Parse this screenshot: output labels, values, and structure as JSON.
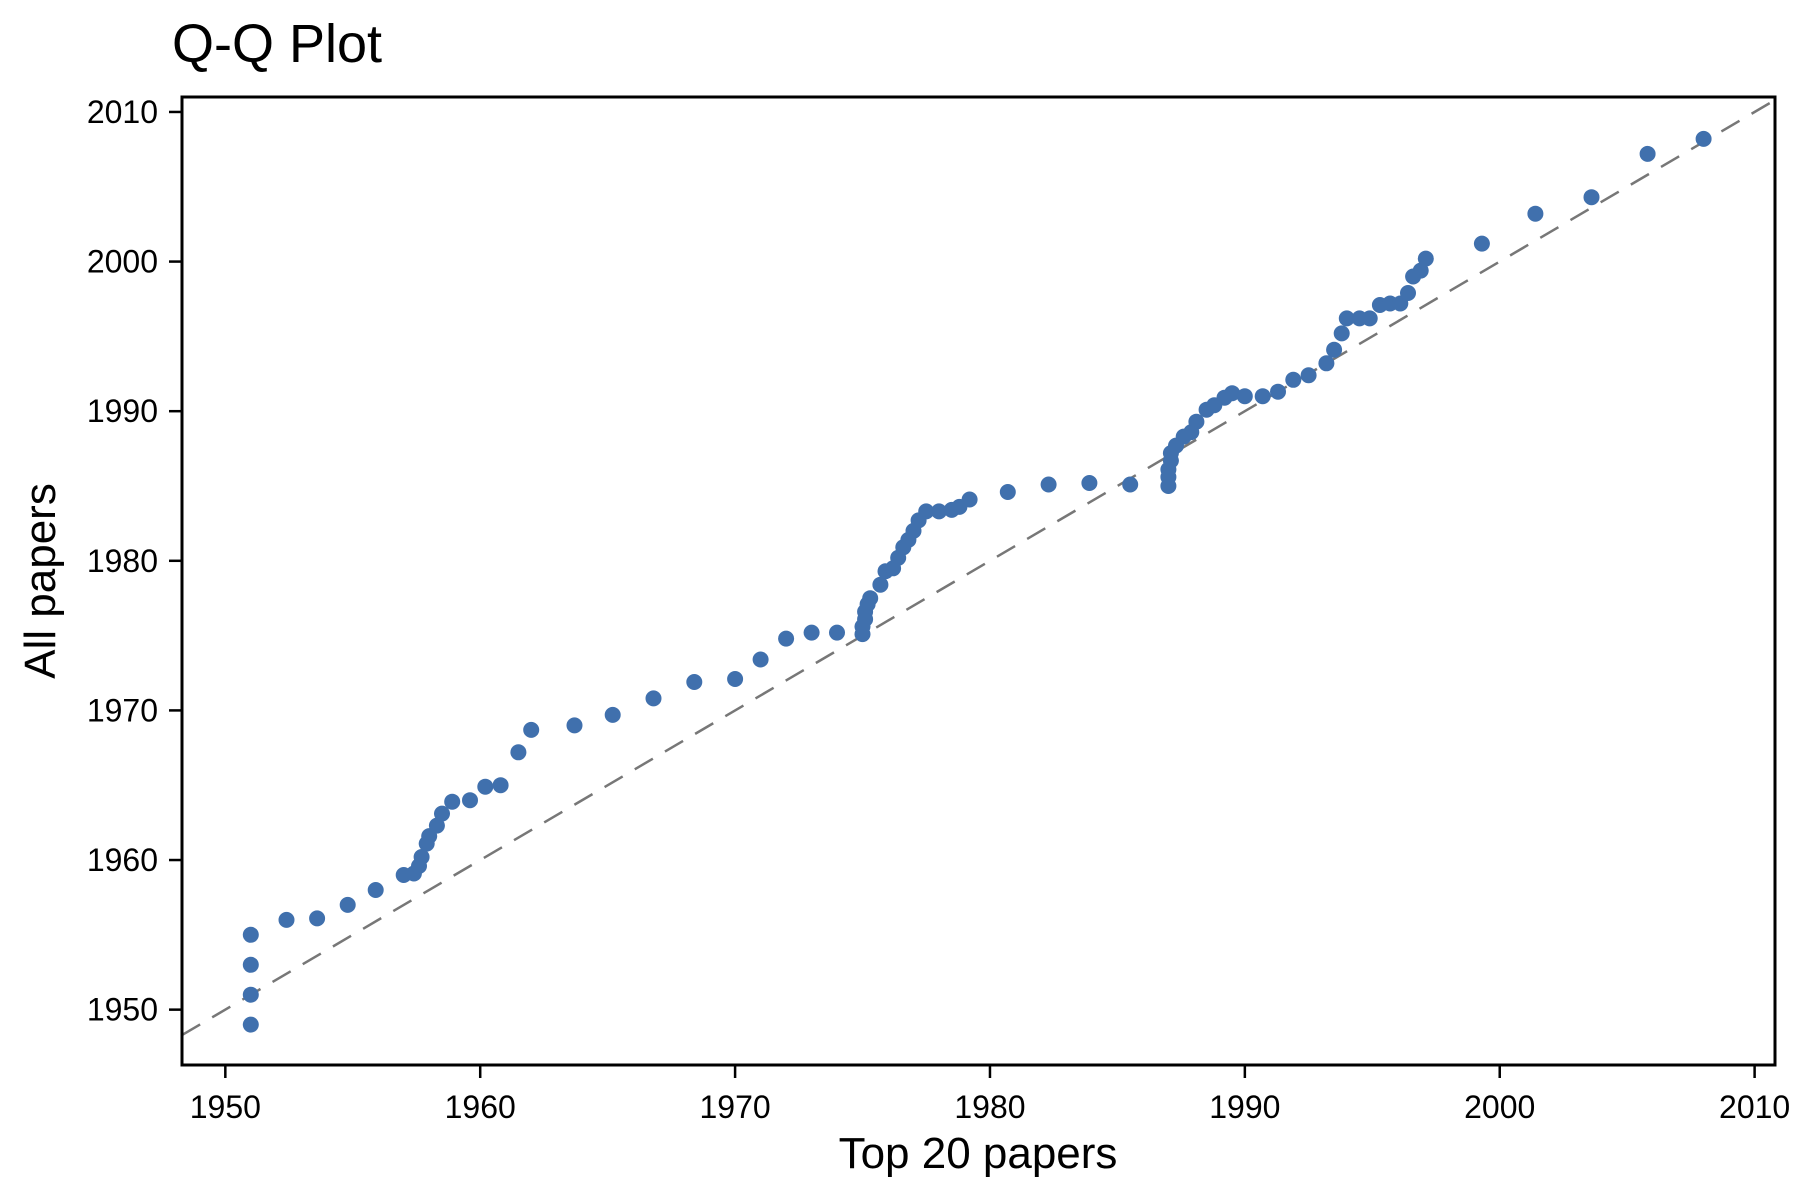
{
  "figure": {
    "title": "Q-Q Plot",
    "xlabel": "Top 20 papers",
    "ylabel": "All papers"
  },
  "chart_data": {
    "type": "scatter",
    "title": "Q-Q Plot",
    "xlabel": "Top 20 papers",
    "ylabel": "All papers",
    "xlim": [
      1948.3,
      2010.8
    ],
    "ylim": [
      1946.3,
      2011.0
    ],
    "xticks": [
      1950,
      1960,
      1970,
      1980,
      1990,
      2000,
      2010
    ],
    "yticks": [
      1950,
      1960,
      1970,
      1980,
      1990,
      2000,
      2010
    ],
    "grid": false,
    "legend": "none",
    "marker_color": "#4070ad",
    "axis_color": "#000000",
    "reference_line": {
      "style": "dashed",
      "color": "#777777",
      "from": [
        1948.3,
        1948.3
      ],
      "to": [
        2010.8,
        2010.8
      ]
    },
    "points": [
      [
        1951.0,
        1949.0
      ],
      [
        1951.0,
        1951.0
      ],
      [
        1951.0,
        1953.0
      ],
      [
        1951.0,
        1955.0
      ],
      [
        1952.4,
        1956.0
      ],
      [
        1953.6,
        1956.1
      ],
      [
        1954.8,
        1957.0
      ],
      [
        1955.9,
        1958.0
      ],
      [
        1957.0,
        1959.0
      ],
      [
        1957.4,
        1959.1
      ],
      [
        1957.6,
        1959.6
      ],
      [
        1957.7,
        1960.2
      ],
      [
        1957.9,
        1961.1
      ],
      [
        1958.0,
        1961.6
      ],
      [
        1958.3,
        1962.3
      ],
      [
        1958.5,
        1963.1
      ],
      [
        1958.9,
        1963.9
      ],
      [
        1959.6,
        1964.0
      ],
      [
        1960.2,
        1964.9
      ],
      [
        1960.8,
        1965.0
      ],
      [
        1961.5,
        1967.2
      ],
      [
        1962.0,
        1968.7
      ],
      [
        1963.7,
        1969.0
      ],
      [
        1965.2,
        1969.7
      ],
      [
        1966.8,
        1970.8
      ],
      [
        1968.4,
        1971.9
      ],
      [
        1970.0,
        1972.1
      ],
      [
        1971.0,
        1973.4
      ],
      [
        1972.0,
        1974.8
      ],
      [
        1973.0,
        1975.2
      ],
      [
        1974.0,
        1975.2
      ],
      [
        1975.0,
        1975.1
      ],
      [
        1975.0,
        1975.6
      ],
      [
        1975.1,
        1976.1
      ],
      [
        1975.1,
        1976.6
      ],
      [
        1975.2,
        1977.1
      ],
      [
        1975.3,
        1977.5
      ],
      [
        1975.7,
        1978.4
      ],
      [
        1975.9,
        1979.3
      ],
      [
        1976.2,
        1979.5
      ],
      [
        1976.4,
        1980.2
      ],
      [
        1976.6,
        1980.9
      ],
      [
        1976.8,
        1981.4
      ],
      [
        1977.0,
        1982.0
      ],
      [
        1977.2,
        1982.7
      ],
      [
        1977.5,
        1983.3
      ],
      [
        1978.0,
        1983.3
      ],
      [
        1978.5,
        1983.4
      ],
      [
        1978.8,
        1983.6
      ],
      [
        1979.2,
        1984.1
      ],
      [
        1980.7,
        1984.6
      ],
      [
        1982.3,
        1985.1
      ],
      [
        1983.9,
        1985.2
      ],
      [
        1985.5,
        1985.1
      ],
      [
        1987.0,
        1985.0
      ],
      [
        1987.0,
        1985.6
      ],
      [
        1987.0,
        1986.1
      ],
      [
        1987.1,
        1986.7
      ],
      [
        1987.1,
        1987.2
      ],
      [
        1987.3,
        1987.7
      ],
      [
        1987.6,
        1988.3
      ],
      [
        1987.9,
        1988.6
      ],
      [
        1988.1,
        1989.3
      ],
      [
        1988.5,
        1990.1
      ],
      [
        1988.8,
        1990.4
      ],
      [
        1989.2,
        1990.9
      ],
      [
        1989.5,
        1991.2
      ],
      [
        1990.0,
        1991.0
      ],
      [
        1990.7,
        1991.0
      ],
      [
        1991.3,
        1991.3
      ],
      [
        1991.9,
        1992.1
      ],
      [
        1992.5,
        1992.4
      ],
      [
        1993.2,
        1993.2
      ],
      [
        1993.5,
        1994.1
      ],
      [
        1993.8,
        1995.2
      ],
      [
        1994.0,
        1996.2
      ],
      [
        1994.5,
        1996.2
      ],
      [
        1994.9,
        1996.2
      ],
      [
        1995.3,
        1997.1
      ],
      [
        1995.7,
        1997.2
      ],
      [
        1996.1,
        1997.2
      ],
      [
        1996.4,
        1997.9
      ],
      [
        1996.6,
        1999.0
      ],
      [
        1996.9,
        1999.4
      ],
      [
        1997.1,
        2000.2
      ],
      [
        1999.3,
        2001.2
      ],
      [
        2001.4,
        2003.2
      ],
      [
        2003.6,
        2004.3
      ],
      [
        2005.8,
        2007.2
      ],
      [
        2008.0,
        2008.2
      ]
    ]
  }
}
